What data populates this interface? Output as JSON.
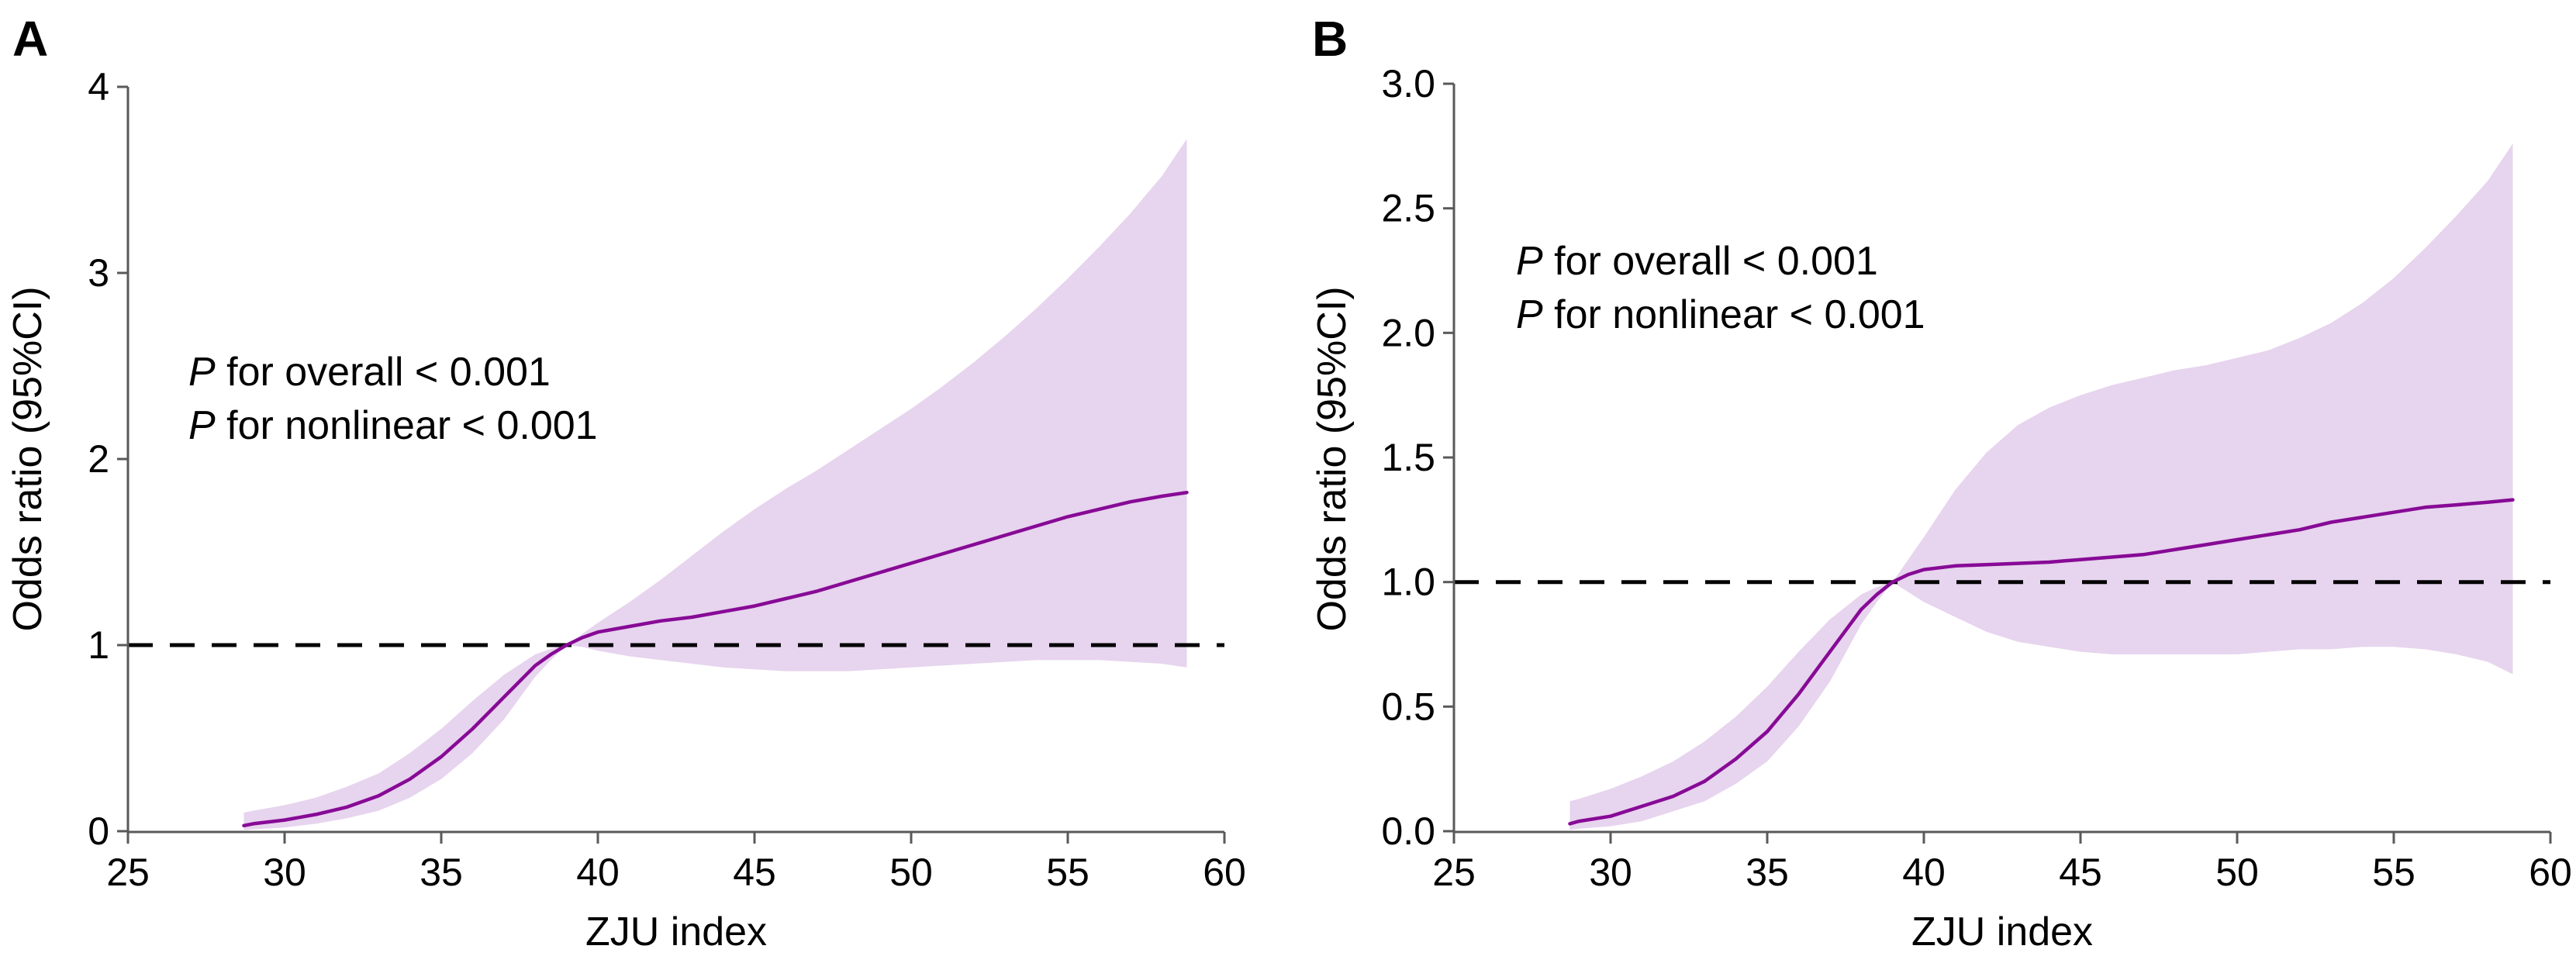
{
  "colors": {
    "curve": "#870a96",
    "ci_band": "#e7d4ee",
    "axis": "#595959",
    "ref_line": "#000000",
    "text": "#000000"
  },
  "chart_data": [
    {
      "type": "line",
      "panel_label": "A",
      "xlabel": "ZJU index",
      "ylabel": "Odds ratio (95%CI)",
      "xlim": [
        25,
        60
      ],
      "ylim": [
        0,
        4
      ],
      "x_ticks": [
        {
          "v": 25,
          "label": "25"
        },
        {
          "v": 30,
          "label": "30"
        },
        {
          "v": 35,
          "label": "35"
        },
        {
          "v": 40,
          "label": "40"
        },
        {
          "v": 45,
          "label": "45"
        },
        {
          "v": 50,
          "label": "50"
        },
        {
          "v": 55,
          "label": "55"
        },
        {
          "v": 60,
          "label": "60"
        }
      ],
      "y_ticks": [
        {
          "v": 0,
          "label": "0"
        },
        {
          "v": 1,
          "label": "1"
        },
        {
          "v": 2,
          "label": "2"
        },
        {
          "v": 3,
          "label": "3"
        },
        {
          "v": 4,
          "label": "4"
        }
      ],
      "ref_line_y": 1,
      "reference_point_x": 39,
      "legend": "none",
      "grid": false,
      "annotations": [
        {
          "p": "P",
          "text": " for overall < 0.001"
        },
        {
          "p": "P",
          "text": " for nonlinear < 0.001"
        }
      ],
      "x": [
        28.7,
        29,
        30,
        31,
        32,
        33,
        34,
        35,
        36,
        37,
        38,
        38.5,
        39,
        39.5,
        40,
        41,
        42,
        43,
        44,
        45,
        46,
        47,
        48,
        49,
        50,
        51,
        52,
        53,
        54,
        55,
        56,
        57,
        58,
        58.8
      ],
      "series": [
        {
          "name": "odds_ratio",
          "y": [
            0.03,
            0.04,
            0.06,
            0.09,
            0.13,
            0.19,
            0.28,
            0.4,
            0.55,
            0.72,
            0.89,
            0.95,
            1.0,
            1.04,
            1.07,
            1.1,
            1.13,
            1.15,
            1.18,
            1.21,
            1.25,
            1.29,
            1.34,
            1.39,
            1.44,
            1.49,
            1.54,
            1.59,
            1.64,
            1.69,
            1.73,
            1.77,
            1.8,
            1.82
          ]
        },
        {
          "name": "ci_lower",
          "y": [
            0.005,
            0.01,
            0.02,
            0.04,
            0.07,
            0.11,
            0.18,
            0.28,
            0.42,
            0.6,
            0.83,
            0.92,
            1.0,
            0.99,
            0.97,
            0.94,
            0.92,
            0.9,
            0.88,
            0.87,
            0.86,
            0.86,
            0.86,
            0.87,
            0.88,
            0.89,
            0.9,
            0.91,
            0.92,
            0.92,
            0.92,
            0.91,
            0.9,
            0.88
          ]
        },
        {
          "name": "ci_upper",
          "y": [
            0.1,
            0.11,
            0.14,
            0.18,
            0.24,
            0.31,
            0.42,
            0.55,
            0.7,
            0.84,
            0.95,
            0.98,
            1.0,
            1.06,
            1.12,
            1.23,
            1.35,
            1.48,
            1.61,
            1.73,
            1.84,
            1.94,
            2.05,
            2.16,
            2.27,
            2.39,
            2.52,
            2.66,
            2.81,
            2.97,
            3.14,
            3.32,
            3.52,
            3.72
          ]
        }
      ]
    },
    {
      "type": "line",
      "panel_label": "B",
      "xlabel": "ZJU index",
      "ylabel": "Odds ratio (95%CI)",
      "xlim": [
        25,
        60
      ],
      "ylim": [
        0,
        3
      ],
      "x_ticks": [
        {
          "v": 25,
          "label": "25"
        },
        {
          "v": 30,
          "label": "30"
        },
        {
          "v": 35,
          "label": "35"
        },
        {
          "v": 40,
          "label": "40"
        },
        {
          "v": 45,
          "label": "45"
        },
        {
          "v": 50,
          "label": "50"
        },
        {
          "v": 55,
          "label": "55"
        },
        {
          "v": 60,
          "label": "60"
        }
      ],
      "y_ticks": [
        {
          "v": 0.0,
          "label": "0.0"
        },
        {
          "v": 0.5,
          "label": "0.5"
        },
        {
          "v": 1.0,
          "label": "1.0"
        },
        {
          "v": 1.5,
          "label": "1.5"
        },
        {
          "v": 2.0,
          "label": "2.0"
        },
        {
          "v": 2.5,
          "label": "2.5"
        },
        {
          "v": 3.0,
          "label": "3.0"
        }
      ],
      "ref_line_y": 1,
      "reference_point_x": 39,
      "legend": "none",
      "grid": false,
      "annotations": [
        {
          "p": "P",
          "text": " for overall < 0.001"
        },
        {
          "p": "P",
          "text": " for nonlinear < 0.001"
        }
      ],
      "x": [
        28.7,
        29,
        30,
        31,
        32,
        33,
        34,
        35,
        36,
        37,
        38,
        38.5,
        39,
        39.5,
        40,
        41,
        42,
        43,
        44,
        45,
        46,
        47,
        48,
        49,
        50,
        51,
        52,
        53,
        54,
        55,
        56,
        57,
        58,
        58.8
      ],
      "series": [
        {
          "name": "odds_ratio",
          "y": [
            0.03,
            0.04,
            0.06,
            0.1,
            0.14,
            0.2,
            0.29,
            0.4,
            0.55,
            0.72,
            0.89,
            0.95,
            1.0,
            1.03,
            1.05,
            1.065,
            1.07,
            1.075,
            1.08,
            1.09,
            1.1,
            1.11,
            1.13,
            1.15,
            1.17,
            1.19,
            1.21,
            1.24,
            1.26,
            1.28,
            1.3,
            1.31,
            1.32,
            1.33
          ]
        },
        {
          "name": "ci_lower",
          "y": [
            0.005,
            0.01,
            0.02,
            0.04,
            0.08,
            0.12,
            0.19,
            0.28,
            0.42,
            0.6,
            0.83,
            0.92,
            1.0,
            0.96,
            0.92,
            0.86,
            0.8,
            0.76,
            0.74,
            0.72,
            0.71,
            0.71,
            0.71,
            0.71,
            0.71,
            0.72,
            0.73,
            0.73,
            0.74,
            0.74,
            0.73,
            0.71,
            0.68,
            0.63
          ]
        },
        {
          "name": "ci_upper",
          "y": [
            0.12,
            0.13,
            0.17,
            0.22,
            0.28,
            0.36,
            0.46,
            0.58,
            0.72,
            0.85,
            0.95,
            0.98,
            1.0,
            1.09,
            1.18,
            1.37,
            1.52,
            1.63,
            1.7,
            1.75,
            1.79,
            1.82,
            1.85,
            1.87,
            1.9,
            1.93,
            1.98,
            2.04,
            2.12,
            2.22,
            2.34,
            2.47,
            2.61,
            2.76
          ]
        }
      ]
    }
  ]
}
